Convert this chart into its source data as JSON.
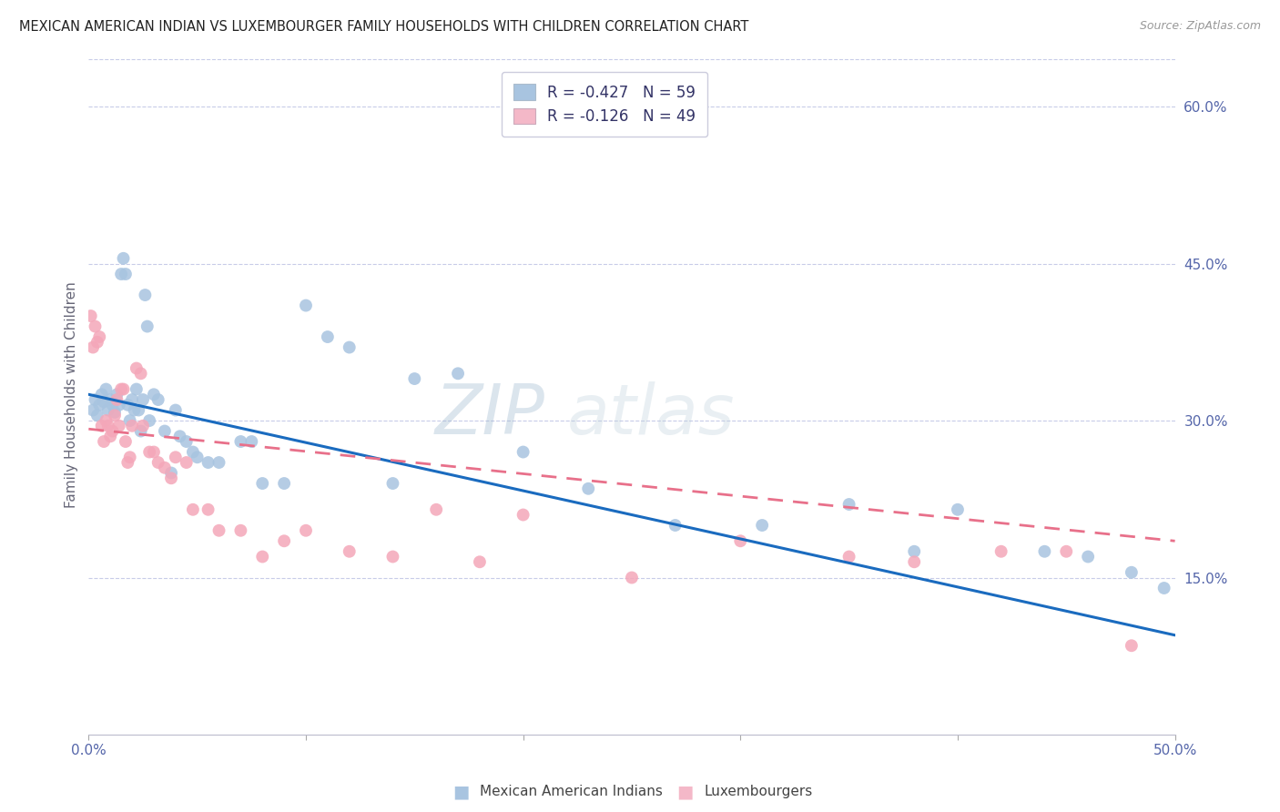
{
  "title": "MEXICAN AMERICAN INDIAN VS LUXEMBOURGER FAMILY HOUSEHOLDS WITH CHILDREN CORRELATION CHART",
  "source": "Source: ZipAtlas.com",
  "ylabel": "Family Households with Children",
  "xlim": [
    0.0,
    0.5
  ],
  "ylim": [
    0.0,
    0.65
  ],
  "xticks": [
    0.0,
    0.1,
    0.2,
    0.3,
    0.4,
    0.5
  ],
  "xticklabels": [
    "0.0%",
    "",
    "",
    "",
    "",
    "50.0%"
  ],
  "yticks_right": [
    0.15,
    0.3,
    0.45,
    0.6
  ],
  "ytick_labels_right": [
    "15.0%",
    "30.0%",
    "45.0%",
    "60.0%"
  ],
  "blue_scatter_color": "#a8c4e0",
  "pink_scatter_color": "#f4a7b9",
  "blue_line_color": "#1a6bbf",
  "pink_line_color": "#e8708a",
  "legend_blue_box": "#a8c4e0",
  "legend_pink_box": "#f4b8c8",
  "legend_blue_label": "R = -0.427   N = 59",
  "legend_pink_label": "R = -0.126   N = 49",
  "watermark": "ZIPatlas",
  "bottom_legend_blue": "Mexican American Indians",
  "bottom_legend_pink": "Luxembourgers",
  "blue_line_start_y": 0.325,
  "blue_line_end_y": 0.095,
  "pink_line_start_y": 0.292,
  "pink_line_end_y": 0.185,
  "blue_scatter_x": [
    0.002,
    0.003,
    0.004,
    0.005,
    0.006,
    0.007,
    0.008,
    0.009,
    0.01,
    0.011,
    0.012,
    0.013,
    0.014,
    0.015,
    0.016,
    0.017,
    0.018,
    0.019,
    0.02,
    0.021,
    0.022,
    0.023,
    0.024,
    0.025,
    0.026,
    0.027,
    0.028,
    0.03,
    0.032,
    0.035,
    0.038,
    0.04,
    0.042,
    0.045,
    0.048,
    0.05,
    0.055,
    0.06,
    0.07,
    0.075,
    0.08,
    0.09,
    0.1,
    0.11,
    0.12,
    0.14,
    0.15,
    0.17,
    0.2,
    0.23,
    0.27,
    0.31,
    0.35,
    0.38,
    0.4,
    0.44,
    0.46,
    0.48,
    0.495
  ],
  "blue_scatter_y": [
    0.31,
    0.32,
    0.305,
    0.315,
    0.325,
    0.318,
    0.33,
    0.31,
    0.32,
    0.315,
    0.308,
    0.325,
    0.315,
    0.44,
    0.455,
    0.44,
    0.315,
    0.3,
    0.32,
    0.31,
    0.33,
    0.31,
    0.29,
    0.32,
    0.42,
    0.39,
    0.3,
    0.325,
    0.32,
    0.29,
    0.25,
    0.31,
    0.285,
    0.28,
    0.27,
    0.265,
    0.26,
    0.26,
    0.28,
    0.28,
    0.24,
    0.24,
    0.41,
    0.38,
    0.37,
    0.24,
    0.34,
    0.345,
    0.27,
    0.235,
    0.2,
    0.2,
    0.22,
    0.175,
    0.215,
    0.175,
    0.17,
    0.155,
    0.14
  ],
  "pink_scatter_x": [
    0.001,
    0.002,
    0.003,
    0.004,
    0.005,
    0.006,
    0.007,
    0.008,
    0.009,
    0.01,
    0.011,
    0.012,
    0.013,
    0.014,
    0.015,
    0.016,
    0.017,
    0.018,
    0.019,
    0.02,
    0.022,
    0.024,
    0.025,
    0.028,
    0.03,
    0.032,
    0.035,
    0.038,
    0.04,
    0.045,
    0.048,
    0.055,
    0.06,
    0.07,
    0.08,
    0.09,
    0.1,
    0.12,
    0.14,
    0.16,
    0.18,
    0.2,
    0.25,
    0.3,
    0.35,
    0.38,
    0.42,
    0.45,
    0.48
  ],
  "pink_scatter_y": [
    0.4,
    0.37,
    0.39,
    0.375,
    0.38,
    0.295,
    0.28,
    0.3,
    0.295,
    0.285,
    0.29,
    0.305,
    0.32,
    0.295,
    0.33,
    0.33,
    0.28,
    0.26,
    0.265,
    0.295,
    0.35,
    0.345,
    0.295,
    0.27,
    0.27,
    0.26,
    0.255,
    0.245,
    0.265,
    0.26,
    0.215,
    0.215,
    0.195,
    0.195,
    0.17,
    0.185,
    0.195,
    0.175,
    0.17,
    0.215,
    0.165,
    0.21,
    0.15,
    0.185,
    0.17,
    0.165,
    0.175,
    0.175,
    0.085
  ]
}
